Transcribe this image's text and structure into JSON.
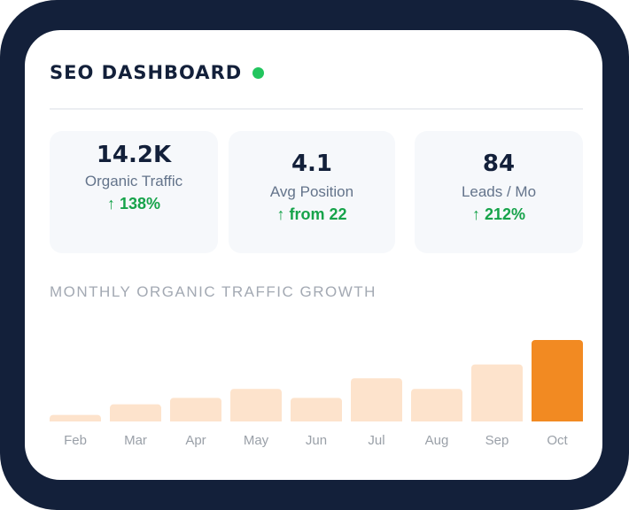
{
  "dashboard": {
    "title": "SEO DASHBOARD",
    "status_color": "#22c55e"
  },
  "kpis": [
    {
      "value": "14.2K",
      "label": "Organic Traffic",
      "delta": "↑ 138%"
    },
    {
      "value": "4.1",
      "label": "Avg Position",
      "delta": "↑ from 22"
    },
    {
      "value": "84",
      "label": "Leads / Mo",
      "delta": "↑ 212%"
    }
  ],
  "chart_data": {
    "type": "bar",
    "title": "MONTHLY ORGANIC TRAFFIC GROWTH",
    "categories": [
      "Feb",
      "Mar",
      "Apr",
      "May",
      "Jun",
      "Jul",
      "Aug",
      "Sep",
      "Oct"
    ],
    "values": [
      0.08,
      0.21,
      0.29,
      0.4,
      0.29,
      0.53,
      0.4,
      0.7,
      1.0
    ],
    "highlight_index": 8,
    "colors": {
      "bar": "#fde3cc",
      "highlight": "#f28a22",
      "axis_label": "#9aa0a8"
    }
  }
}
